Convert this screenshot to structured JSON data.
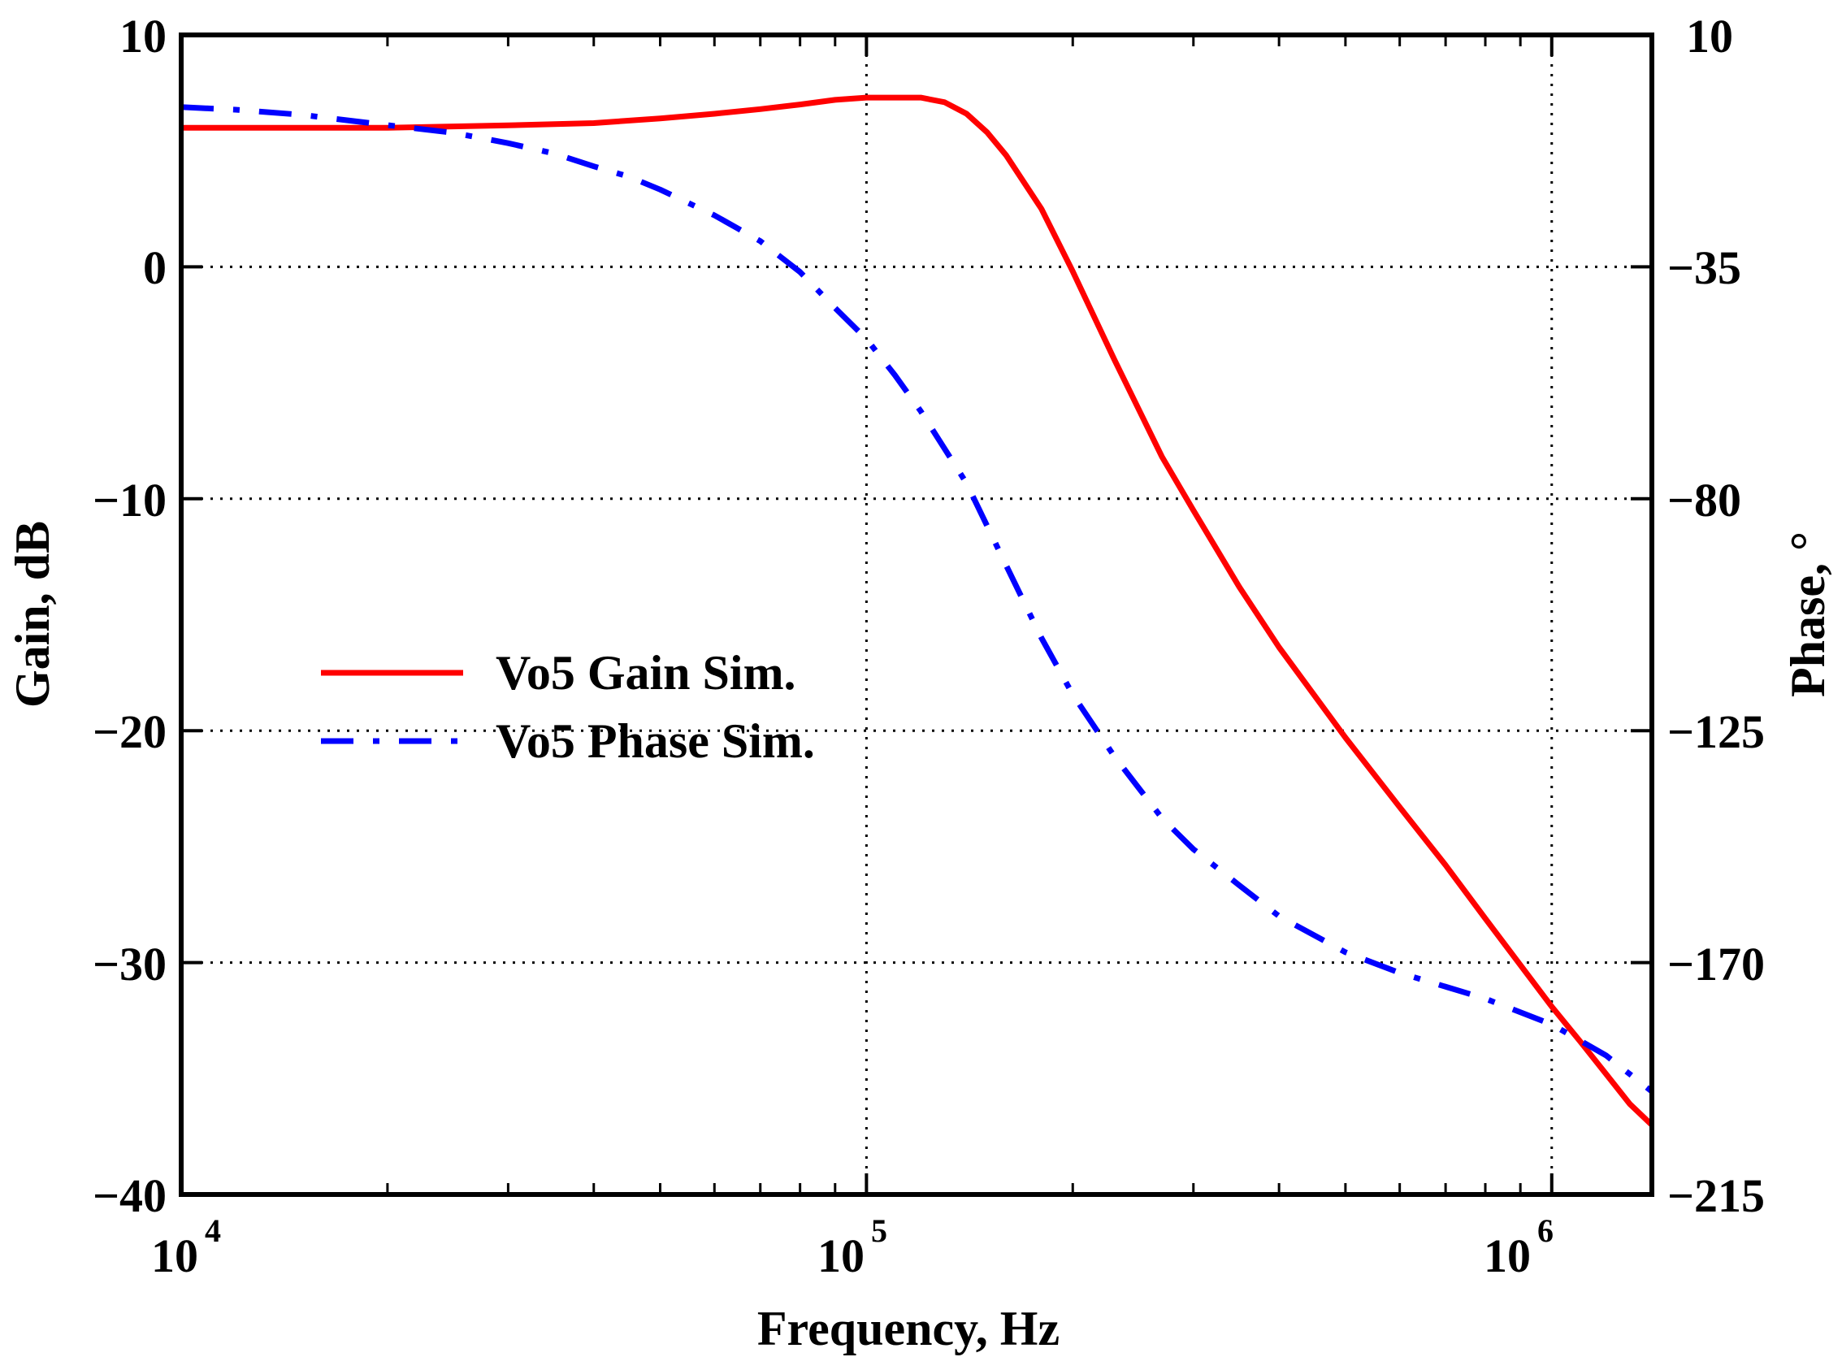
{
  "chart_data": {
    "type": "line",
    "xscale": "log",
    "xlim": [
      10000,
      1400000
    ],
    "xlabel": "Frequency, Hz",
    "x_ticks": [
      {
        "value": 10000,
        "base": "10",
        "exp": "4"
      },
      {
        "value": 100000,
        "base": "10",
        "exp": "5"
      },
      {
        "value": 1000000,
        "base": "10",
        "exp": "6"
      }
    ],
    "y_left": {
      "label": "Gain, dB",
      "lim": [
        -40,
        10
      ],
      "ticks": [
        10,
        0,
        -10,
        -20,
        -30,
        -40
      ],
      "tick_labels": [
        "10",
        "0",
        "−10",
        "−20",
        "−30",
        "−40"
      ]
    },
    "y_right": {
      "label": "Phase, °",
      "lim": [
        -215,
        10
      ],
      "ticks": [
        10,
        -35,
        -80,
        -125,
        -170,
        -215
      ],
      "tick_labels": [
        "10",
        "−35",
        "−80",
        "−125",
        "−170",
        "−215"
      ]
    },
    "grid": true,
    "legend_position": "center-left",
    "series": [
      {
        "name": "Vo5 Gain Sim.",
        "axis": "left",
        "color": "#ff0000",
        "style": "solid",
        "x": [
          10000,
          20000,
          30000,
          40000,
          50000,
          60000,
          70000,
          80000,
          90000,
          100000,
          110000,
          120000,
          130000,
          140000,
          150000,
          160000,
          180000,
          200000,
          230000,
          270000,
          300000,
          350000,
          400000,
          500000,
          600000,
          700000,
          800000,
          1000000,
          1100000,
          1200000,
          1300000,
          1400000
        ],
        "y": [
          6.0,
          6.0,
          6.1,
          6.2,
          6.4,
          6.6,
          6.8,
          7.0,
          7.2,
          7.3,
          7.3,
          7.3,
          7.1,
          6.6,
          5.8,
          4.8,
          2.5,
          -0.2,
          -4.0,
          -8.2,
          -10.5,
          -13.8,
          -16.4,
          -20.3,
          -23.3,
          -25.8,
          -28.1,
          -31.9,
          -33.4,
          -34.8,
          -36.1,
          -37.0
        ]
      },
      {
        "name": "Vo5 Phase Sim.",
        "axis": "right",
        "color": "#0000ff",
        "style": "dash-dot",
        "x": [
          10000,
          12000,
          15000,
          20000,
          25000,
          30000,
          35000,
          40000,
          45000,
          50000,
          60000,
          70000,
          80000,
          90000,
          100000,
          110000,
          120000,
          140000,
          160000,
          180000,
          200000,
          230000,
          270000,
          300000,
          350000,
          400000,
          500000,
          600000,
          800000,
          1000000,
          1200000,
          1400000
        ],
        "y": [
          -4,
          -4.5,
          -5.5,
          -7.5,
          -9,
          -11,
          -13,
          -15.5,
          -17.5,
          -20,
          -25,
          -30,
          -36,
          -43,
          -49,
          -56,
          -63,
          -77,
          -93,
          -107,
          -118,
          -130,
          -142,
          -148,
          -155,
          -161,
          -168,
          -172,
          -177,
          -182,
          -188,
          -195
        ]
      }
    ]
  }
}
